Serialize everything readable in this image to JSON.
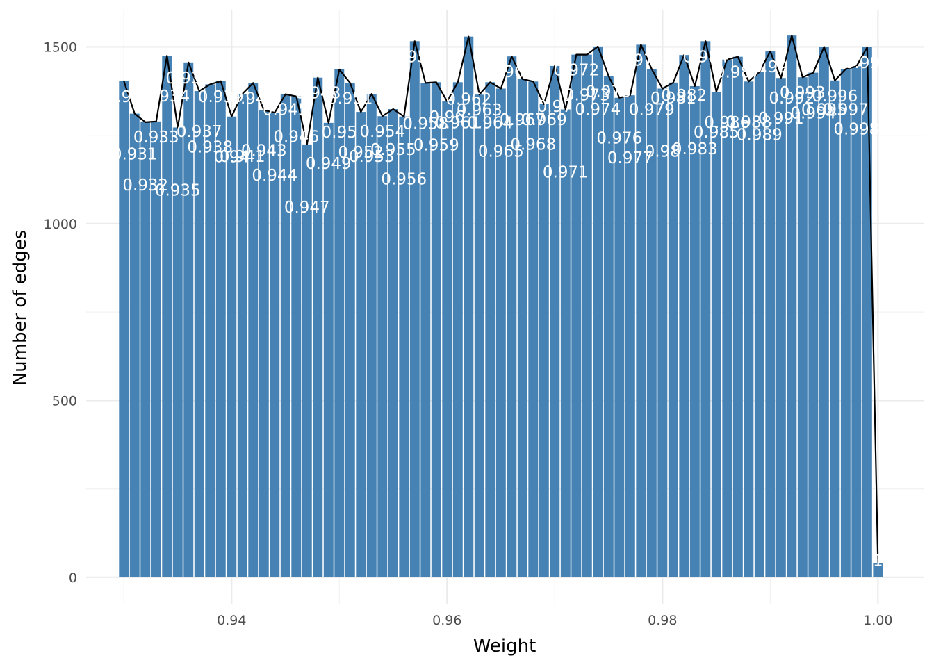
{
  "chart_data": {
    "type": "bar",
    "title": "",
    "xlabel": "Weight",
    "ylabel": "Number of edges",
    "xlim": [
      0.9265,
      1.0043
    ],
    "ylim": [
      -75,
      1605
    ],
    "x_ticks": [
      0.94,
      0.96,
      0.98,
      1.0
    ],
    "x_tick_labels": [
      "0.94",
      "0.96",
      "0.98",
      "1.00"
    ],
    "y_ticks": [
      0,
      500,
      1000,
      1500
    ],
    "y_tick_labels": [
      "0",
      "500",
      "1000",
      "1500"
    ],
    "grid": true,
    "legend": "none",
    "bar_color": "#4682b4",
    "line_color": "#000000",
    "label_color": "#ffffff",
    "bin_width": 0.001,
    "x": [
      0.93,
      0.931,
      0.932,
      0.933,
      0.934,
      0.935,
      0.936,
      0.937,
      0.938,
      0.939,
      0.94,
      0.941,
      0.942,
      0.943,
      0.944,
      0.945,
      0.946,
      0.947,
      0.948,
      0.949,
      0.95,
      0.951,
      0.952,
      0.953,
      0.954,
      0.955,
      0.956,
      0.957,
      0.958,
      0.959,
      0.96,
      0.961,
      0.962,
      0.963,
      0.964,
      0.965,
      0.966,
      0.967,
      0.968,
      0.969,
      0.97,
      0.971,
      0.972,
      0.973,
      0.974,
      0.975,
      0.976,
      0.977,
      0.978,
      0.979,
      0.98,
      0.981,
      0.982,
      0.983,
      0.984,
      0.985,
      0.986,
      0.987,
      0.988,
      0.989,
      0.99,
      0.991,
      0.992,
      0.993,
      0.994,
      0.995,
      0.996,
      0.997,
      0.998,
      0.999,
      1.0
    ],
    "values": [
      1403,
      1311,
      1287,
      1289,
      1475,
      1272,
      1456,
      1375,
      1394,
      1403,
      1303,
      1367,
      1398,
      1321,
      1314,
      1366,
      1360,
      1224,
      1413,
      1285,
      1436,
      1398,
      1316,
      1367,
      1304,
      1324,
      1303,
      1516,
      1398,
      1400,
      1346,
      1400,
      1529,
      1365,
      1400,
      1382,
      1473,
      1409,
      1402,
      1338,
      1446,
      1323,
      1478,
      1478,
      1501,
      1417,
      1356,
      1363,
      1506,
      1437,
      1382,
      1399,
      1477,
      1389,
      1516,
      1373,
      1464,
      1472,
      1402,
      1429,
      1487,
      1412,
      1532,
      1414,
      1427,
      1500,
      1405,
      1437,
      1445,
      1499,
      40
    ],
    "labels": [
      "0.93",
      "0.931",
      "0.932",
      "0.933",
      "0.934",
      "0.935",
      "0.936",
      "0.937",
      "0.938",
      "0.939",
      "0.94",
      "0.941",
      "0.942",
      "0.943",
      "0.944",
      "0.945",
      "0.946",
      "0.947",
      "0.948",
      "0.949",
      "0.95",
      "0.951",
      "0.952",
      "0.953",
      "0.954",
      "0.955",
      "0.956",
      "0.957",
      "0.958",
      "0.959",
      "0.96",
      "0.961",
      "0.962",
      "0.963",
      "0.964",
      "0.965",
      "0.966",
      "0.967",
      "0.968",
      "0.969",
      "0.97",
      "0.971",
      "0.972",
      "0.973",
      "0.974",
      "0.975",
      "0.976",
      "0.977",
      "0.978",
      "0.979",
      "0.98",
      "0.981",
      "0.982",
      "0.983",
      "0.984",
      "0.985",
      "0.986",
      "0.987",
      "0.988",
      "0.989",
      "0.99",
      "0.991",
      "0.992",
      "0.993",
      "0.994",
      "0.995",
      "0.996",
      "0.997",
      "0.998",
      "0.999",
      "1"
    ]
  }
}
